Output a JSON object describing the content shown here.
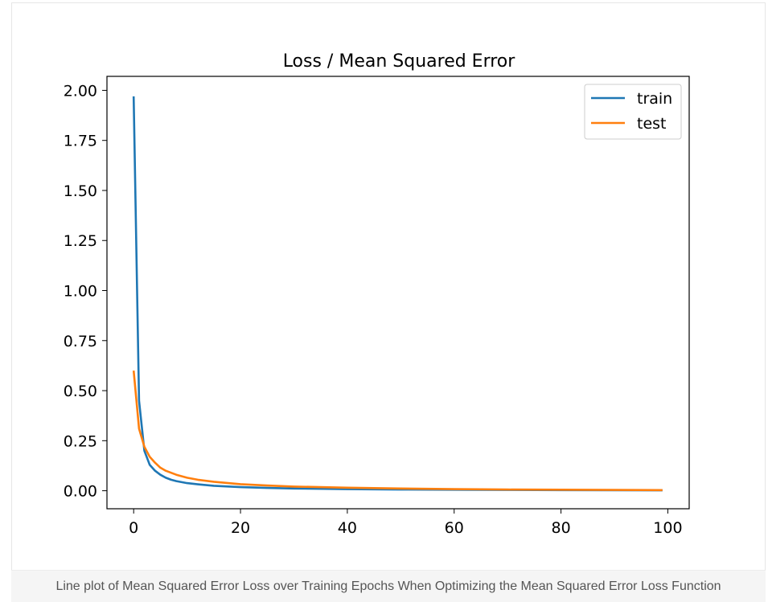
{
  "caption": "Line plot of Mean Squared Error Loss over Training Epochs When Optimizing the Mean Squared Error Loss Function",
  "chart_data": {
    "type": "line",
    "title": "Loss / Mean Squared Error",
    "xlabel": "",
    "ylabel": "",
    "xlim": [
      -5,
      104
    ],
    "ylim": [
      -0.09,
      2.07
    ],
    "xticks": [
      0,
      20,
      40,
      60,
      80,
      100
    ],
    "xtick_labels": [
      "0",
      "20",
      "40",
      "60",
      "80",
      "100"
    ],
    "yticks": [
      0,
      0.25,
      0.5,
      0.75,
      1.0,
      1.25,
      1.5,
      1.75,
      2.0
    ],
    "ytick_labels": [
      "0.00",
      "0.25",
      "0.50",
      "0.75",
      "1.00",
      "1.25",
      "1.50",
      "1.75",
      "2.00"
    ],
    "grid": false,
    "legend_position": "top-right",
    "series": [
      {
        "name": "train",
        "color": "#1f77b4",
        "x": [
          0,
          1,
          2,
          3,
          4,
          5,
          6,
          7,
          8,
          10,
          12,
          15,
          20,
          25,
          30,
          40,
          50,
          60,
          70,
          80,
          90,
          99
        ],
        "y": [
          1.97,
          0.45,
          0.2,
          0.13,
          0.1,
          0.08,
          0.065,
          0.055,
          0.048,
          0.038,
          0.032,
          0.025,
          0.018,
          0.014,
          0.011,
          0.008,
          0.006,
          0.005,
          0.004,
          0.003,
          0.0025,
          0.002
        ]
      },
      {
        "name": "test",
        "color": "#ff7f0e",
        "x": [
          0,
          1,
          2,
          3,
          4,
          5,
          6,
          7,
          8,
          10,
          12,
          15,
          20,
          25,
          30,
          40,
          50,
          60,
          70,
          80,
          90,
          99
        ],
        "y": [
          0.6,
          0.31,
          0.22,
          0.17,
          0.14,
          0.115,
          0.1,
          0.09,
          0.08,
          0.065,
          0.055,
          0.045,
          0.033,
          0.026,
          0.021,
          0.015,
          0.011,
          0.008,
          0.006,
          0.005,
          0.004,
          0.003
        ]
      }
    ]
  }
}
